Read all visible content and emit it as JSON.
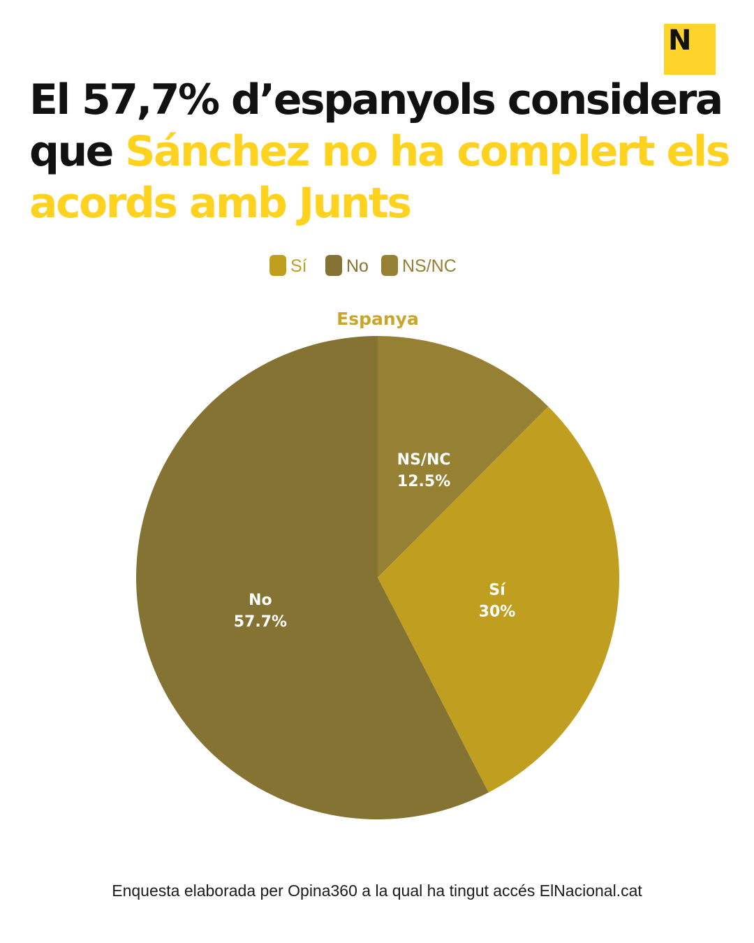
{
  "brand": {
    "logo_letter": "N",
    "color": "#ffd42a"
  },
  "headline": {
    "part1": "El 57,7% d’espanyols considera que ",
    "part2_highlight": "Sánchez no ha complert els acords amb Junts",
    "color_main": "#111111",
    "color_highlight": "#ffd21f"
  },
  "chart_data": {
    "type": "pie",
    "title": "Espanya",
    "title_color": "#c9a52b",
    "unit": "%",
    "legend_position": "top",
    "slices": [
      {
        "label": "NS/NC",
        "value": 12.5,
        "value_label": "12.5%",
        "color": "#958033"
      },
      {
        "label": "Sí",
        "value": 30,
        "value_label": "30%",
        "color": "#c09f20"
      },
      {
        "label": "No",
        "value": 57.7,
        "value_label": "57.7%",
        "color": "#857333"
      }
    ],
    "legend": [
      {
        "label": "Sí",
        "color": "#c09f20"
      },
      {
        "label": "No",
        "color": "#857333"
      },
      {
        "label": "NS/NC",
        "color": "#958033"
      }
    ]
  },
  "footer": {
    "source": "Enquesta elaborada per Opina360 a la qual ha tingut accés ElNacional.cat"
  }
}
